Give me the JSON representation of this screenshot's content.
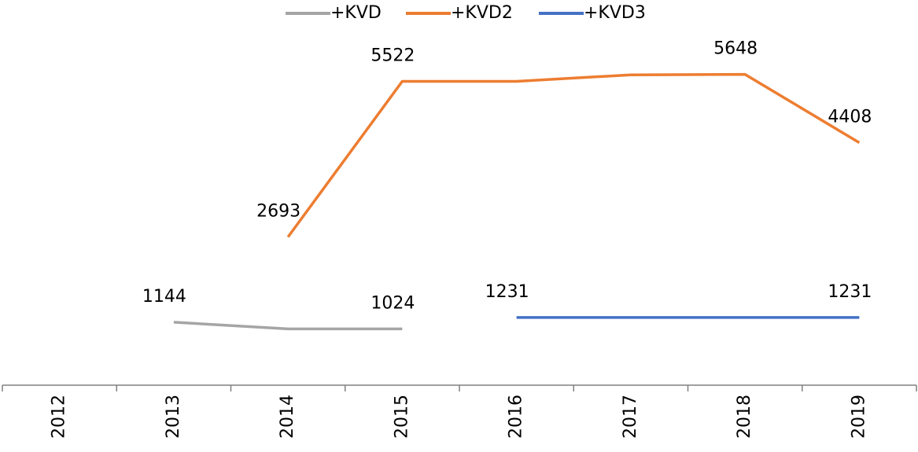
{
  "chart_data": {
    "type": "line",
    "categories": [
      "2012",
      "2013",
      "2014",
      "2015",
      "2016",
      "2017",
      "2018",
      "2019"
    ],
    "series": [
      {
        "name": "+KVD",
        "color": "#a5a5a5",
        "values": [
          null,
          1144,
          1024,
          1024,
          null,
          null,
          null,
          null
        ],
        "value_labels": [
          null,
          "1144",
          null,
          "1024",
          null,
          null,
          null,
          null
        ]
      },
      {
        "name": "+KVD2",
        "color": "#ed7d31",
        "values": [
          null,
          null,
          2693,
          5522,
          5522,
          5640,
          5648,
          4408
        ],
        "value_labels": [
          null,
          null,
          "2693",
          "5522",
          null,
          null,
          "5648",
          "4408"
        ]
      },
      {
        "name": "+KVD3",
        "color": "#4472c4",
        "values": [
          null,
          null,
          null,
          null,
          1231,
          1231,
          1231,
          1231
        ],
        "value_labels": [
          null,
          null,
          null,
          null,
          "1231",
          null,
          null,
          "1231"
        ]
      }
    ],
    "ylim": [
      0,
      7000
    ],
    "legend": "top"
  }
}
